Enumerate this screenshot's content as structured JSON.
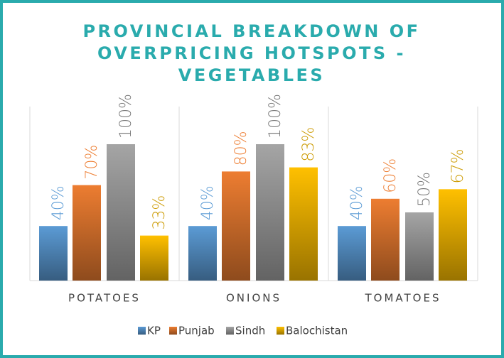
{
  "chart_data": {
    "type": "bar",
    "title": [
      "PROVINCIAL BREAKDOWN OF",
      "OVERPRICING HOTSPOTS -",
      "VEGETABLES"
    ],
    "categories": [
      "POTATOES",
      "ONIONS",
      "TOMATOES"
    ],
    "series": [
      {
        "name": "KP",
        "color": "#5b9bd5",
        "values": [
          40,
          40,
          40
        ],
        "value_labels": [
          "40%",
          "40%",
          "40%"
        ]
      },
      {
        "name": "Punjab",
        "color": "#ed7d31",
        "values": [
          70,
          80,
          60
        ],
        "value_labels": [
          "70%",
          "80%",
          "60%"
        ]
      },
      {
        "name": "Sindh",
        "color": "#a5a5a5",
        "values": [
          100,
          100,
          50
        ],
        "value_labels": [
          "100%",
          "100%",
          "50%"
        ]
      },
      {
        "name": "Balochistan",
        "color": "#ffc000",
        "values": [
          33,
          83,
          67
        ],
        "value_labels": [
          "33%",
          "83%",
          "67%"
        ]
      }
    ],
    "legend": "bottom"
  }
}
